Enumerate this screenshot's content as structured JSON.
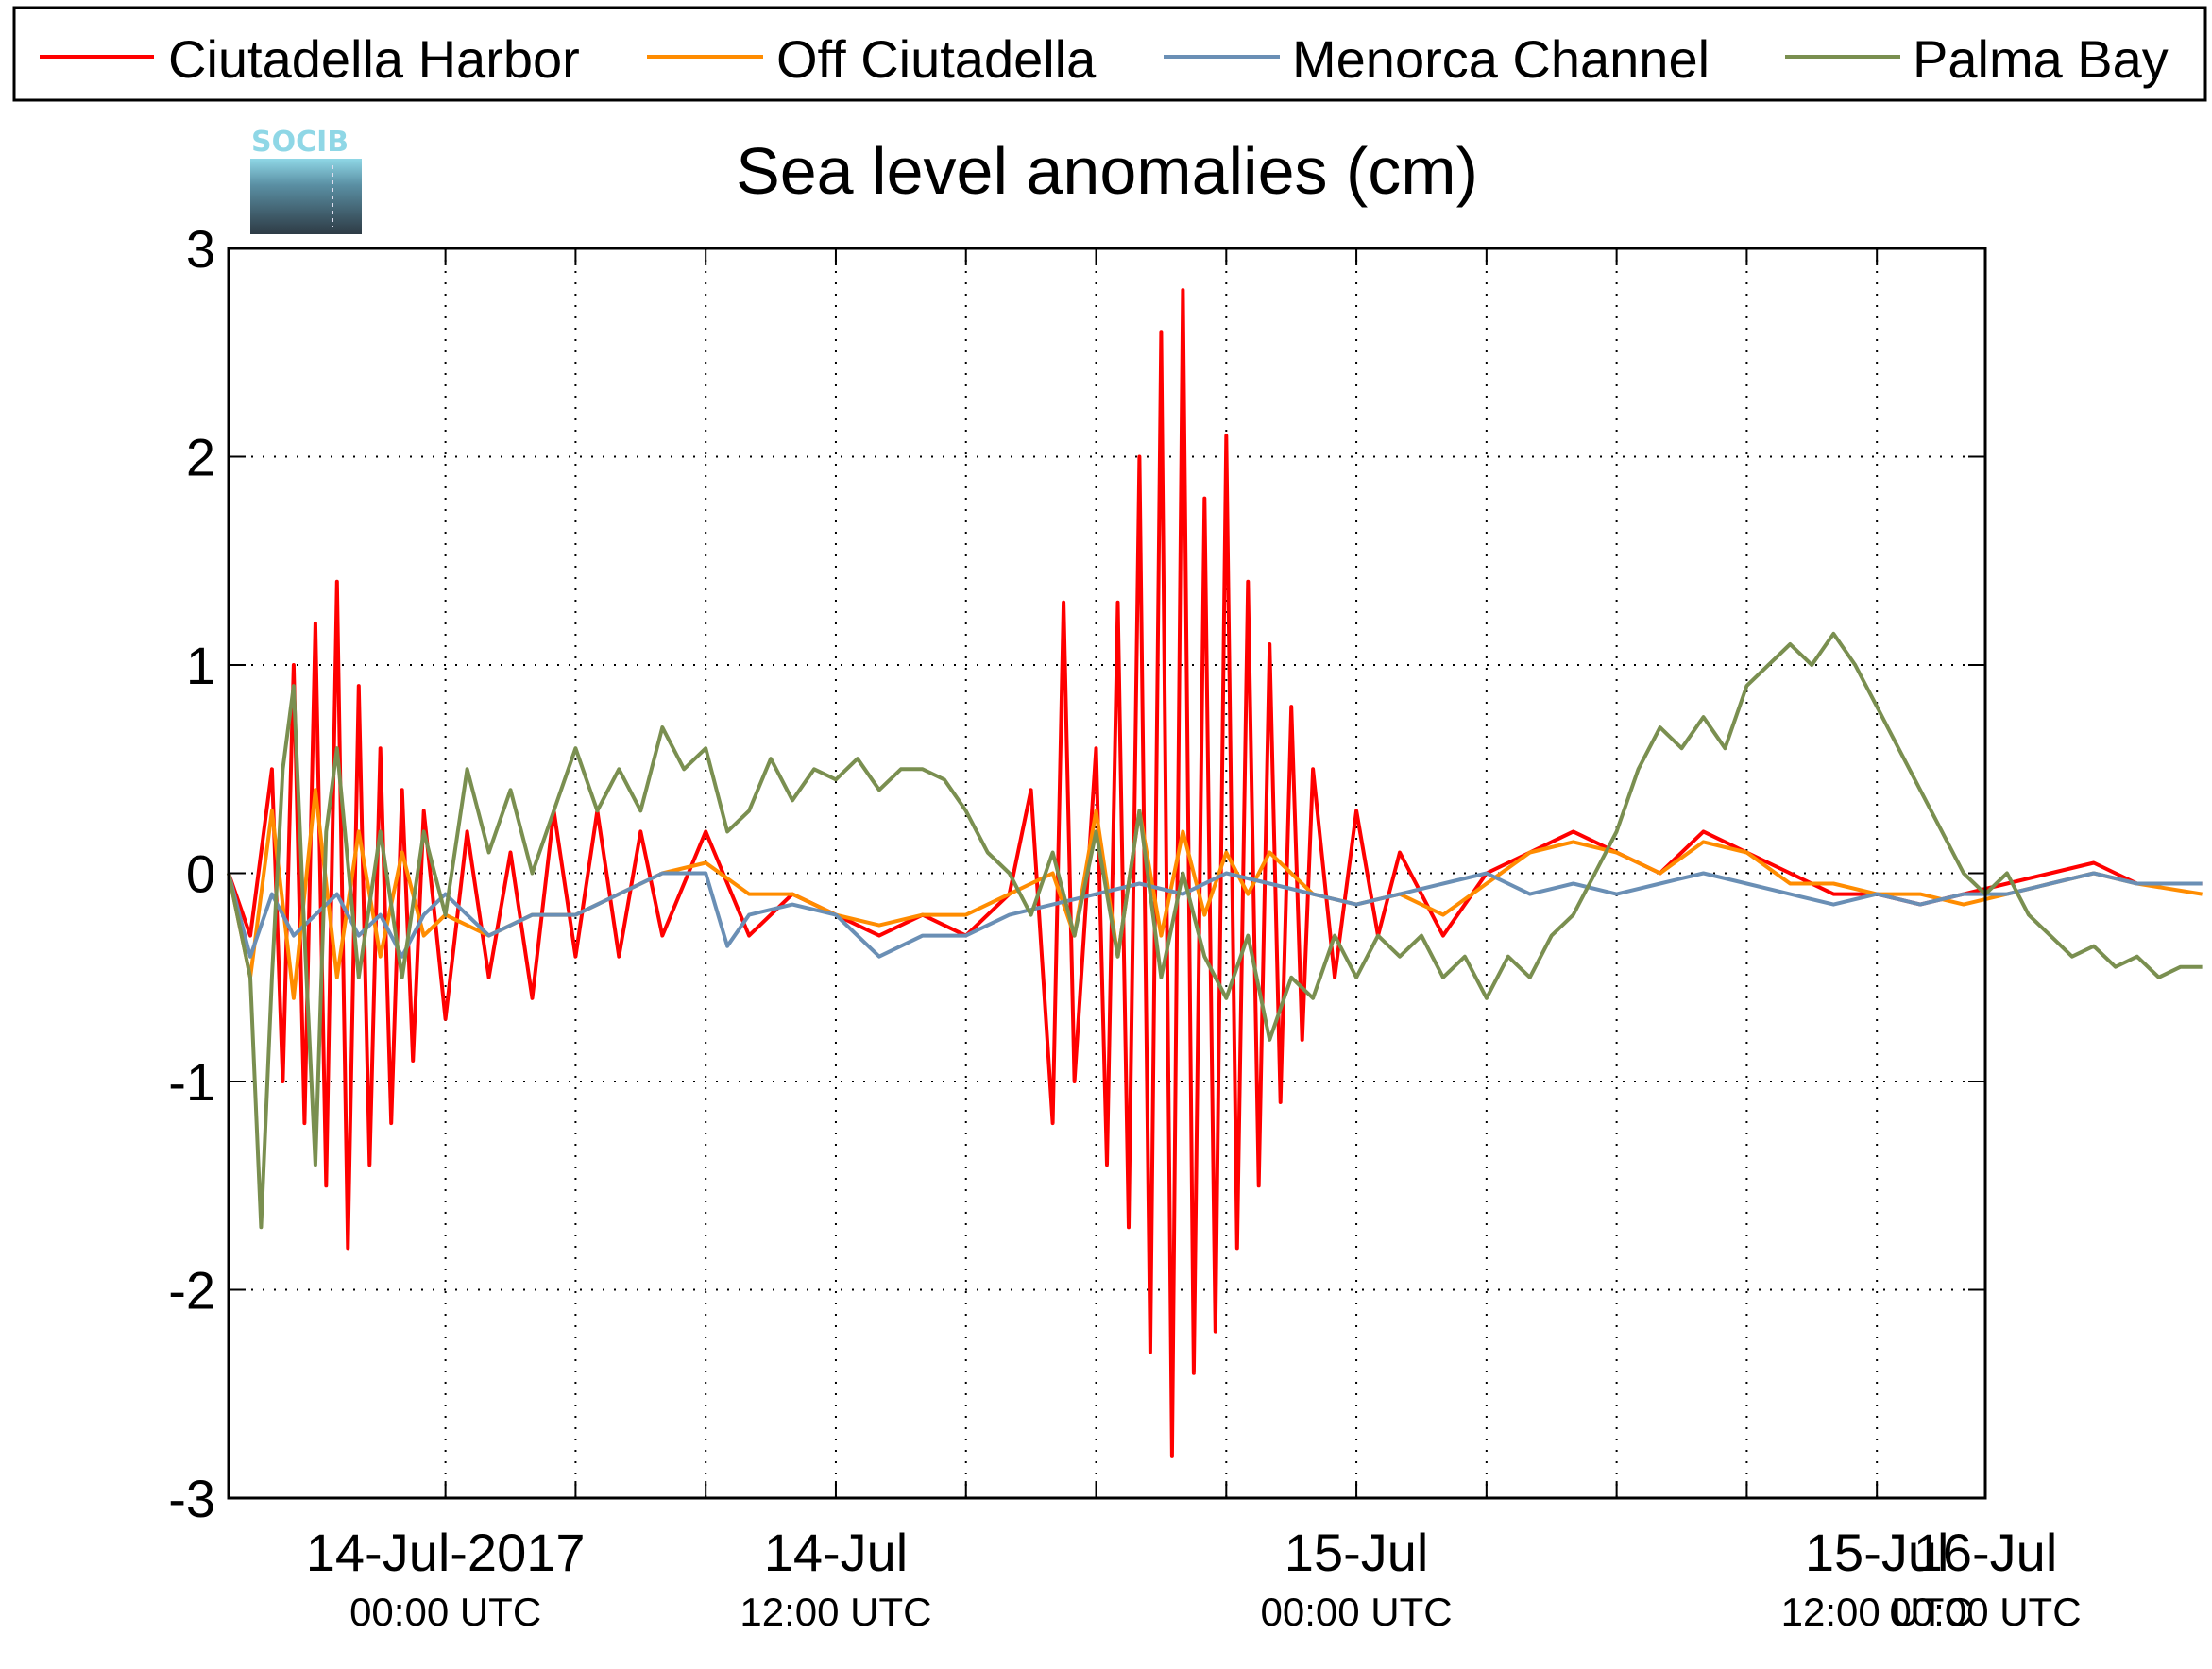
{
  "chart_data": {
    "type": "line",
    "title": "Sea level anomalies (cm)",
    "xlabel": "",
    "ylabel": "",
    "logo_text": "SOCIB",
    "legend_position": "top (outside, horizontal)",
    "grid": true,
    "xlim_hours": [
      -10,
      71
    ],
    "ylim": [
      -3,
      3
    ],
    "y_ticks": [
      "3",
      "2",
      "1",
      "0",
      "-1",
      "-2",
      "-3"
    ],
    "x_ticks": [
      {
        "date": "14-Jul-2017",
        "time": "00:00 UTC"
      },
      {
        "date": "14-Jul",
        "time": "12:00 UTC"
      },
      {
        "date": "15-Jul",
        "time": "00:00 UTC"
      },
      {
        "date": "15-Jul",
        "time": "12:00 UTC"
      },
      {
        "date": "16-Jul",
        "time": "00:00 UTC"
      }
    ],
    "series": [
      {
        "name": "Ciutadella Harbor",
        "color": "#ff0000",
        "points": [
          [
            -10,
            0
          ],
          [
            -9,
            -0.3
          ],
          [
            -8,
            0.5
          ],
          [
            -7.5,
            -1.0
          ],
          [
            -7,
            1.0
          ],
          [
            -6.5,
            -1.2
          ],
          [
            -6,
            1.2
          ],
          [
            -5.5,
            -1.5
          ],
          [
            -5,
            1.4
          ],
          [
            -4.5,
            -1.8
          ],
          [
            -4,
            0.9
          ],
          [
            -3.5,
            -1.4
          ],
          [
            -3,
            0.6
          ],
          [
            -2.5,
            -1.2
          ],
          [
            -2,
            0.4
          ],
          [
            -1.5,
            -0.9
          ],
          [
            -1,
            0.3
          ],
          [
            0,
            -0.7
          ],
          [
            1,
            0.2
          ],
          [
            2,
            -0.5
          ],
          [
            3,
            0.1
          ],
          [
            4,
            -0.6
          ],
          [
            5,
            0.3
          ],
          [
            6,
            -0.4
          ],
          [
            7,
            0.3
          ],
          [
            8,
            -0.4
          ],
          [
            9,
            0.2
          ],
          [
            10,
            -0.3
          ],
          [
            12,
            0.2
          ],
          [
            14,
            -0.3
          ],
          [
            16,
            -0.1
          ],
          [
            18,
            -0.2
          ],
          [
            20,
            -0.3
          ],
          [
            22,
            -0.2
          ],
          [
            24,
            -0.3
          ],
          [
            26,
            -0.1
          ],
          [
            27,
            0.4
          ],
          [
            28,
            -1.2
          ],
          [
            28.5,
            1.3
          ],
          [
            29,
            -1.0
          ],
          [
            30,
            0.6
          ],
          [
            30.5,
            -1.4
          ],
          [
            31,
            1.3
          ],
          [
            31.5,
            -1.7
          ],
          [
            32,
            2.0
          ],
          [
            32.5,
            -2.3
          ],
          [
            33,
            2.6
          ],
          [
            33.5,
            -2.8
          ],
          [
            34,
            2.8
          ],
          [
            34.5,
            -2.4
          ],
          [
            35,
            1.8
          ],
          [
            35.5,
            -2.2
          ],
          [
            36,
            2.1
          ],
          [
            36.5,
            -1.8
          ],
          [
            37,
            1.4
          ],
          [
            37.5,
            -1.5
          ],
          [
            38,
            1.1
          ],
          [
            38.5,
            -1.1
          ],
          [
            39,
            0.8
          ],
          [
            39.5,
            -0.8
          ],
          [
            40,
            0.5
          ],
          [
            41,
            -0.5
          ],
          [
            42,
            0.3
          ],
          [
            43,
            -0.3
          ],
          [
            44,
            0.1
          ],
          [
            46,
            -0.3
          ],
          [
            48,
            0.0
          ],
          [
            50,
            0.1
          ],
          [
            52,
            0.2
          ],
          [
            54,
            0.1
          ],
          [
            56,
            0.0
          ],
          [
            58,
            0.2
          ],
          [
            60,
            0.1
          ],
          [
            62,
            0.0
          ],
          [
            64,
            -0.1
          ],
          [
            66,
            -0.1
          ],
          [
            68,
            -0.15
          ],
          [
            70,
            -0.1
          ],
          [
            72,
            -0.05
          ],
          [
            74,
            0.0
          ],
          [
            76,
            0.05
          ],
          [
            78,
            -0.05
          ],
          [
            81,
            -0.05
          ]
        ]
      },
      {
        "name": "Off Ciutadella",
        "color": "#ff8c00",
        "points": [
          [
            -10,
            0
          ],
          [
            -9,
            -0.5
          ],
          [
            -8,
            0.3
          ],
          [
            -7,
            -0.6
          ],
          [
            -6,
            0.4
          ],
          [
            -5,
            -0.5
          ],
          [
            -4,
            0.2
          ],
          [
            -3,
            -0.4
          ],
          [
            -2,
            0.1
          ],
          [
            -1,
            -0.3
          ],
          [
            0,
            -0.2
          ],
          [
            2,
            -0.3
          ],
          [
            4,
            -0.2
          ],
          [
            6,
            -0.2
          ],
          [
            8,
            -0.1
          ],
          [
            10,
            0.0
          ],
          [
            12,
            0.05
          ],
          [
            14,
            -0.1
          ],
          [
            16,
            -0.1
          ],
          [
            18,
            -0.2
          ],
          [
            20,
            -0.25
          ],
          [
            22,
            -0.2
          ],
          [
            24,
            -0.2
          ],
          [
            26,
            -0.1
          ],
          [
            28,
            0.0
          ],
          [
            29,
            -0.3
          ],
          [
            30,
            0.3
          ],
          [
            31,
            -0.4
          ],
          [
            32,
            0.3
          ],
          [
            33,
            -0.3
          ],
          [
            34,
            0.2
          ],
          [
            35,
            -0.2
          ],
          [
            36,
            0.1
          ],
          [
            37,
            -0.1
          ],
          [
            38,
            0.1
          ],
          [
            40,
            -0.1
          ],
          [
            42,
            -0.15
          ],
          [
            44,
            -0.1
          ],
          [
            46,
            -0.2
          ],
          [
            48,
            -0.05
          ],
          [
            50,
            0.1
          ],
          [
            52,
            0.15
          ],
          [
            54,
            0.1
          ],
          [
            56,
            0.0
          ],
          [
            58,
            0.15
          ],
          [
            60,
            0.1
          ],
          [
            62,
            -0.05
          ],
          [
            64,
            -0.05
          ],
          [
            66,
            -0.1
          ],
          [
            68,
            -0.1
          ],
          [
            70,
            -0.15
          ],
          [
            72,
            -0.1
          ],
          [
            74,
            -0.05
          ],
          [
            76,
            0.0
          ],
          [
            78,
            -0.05
          ],
          [
            81,
            -0.1
          ]
        ]
      },
      {
        "name": "Menorca Channel",
        "color": "#6a8fb5",
        "points": [
          [
            -10,
            0
          ],
          [
            -9,
            -0.4
          ],
          [
            -8,
            -0.1
          ],
          [
            -7,
            -0.3
          ],
          [
            -6,
            -0.2
          ],
          [
            -5,
            -0.1
          ],
          [
            -4,
            -0.3
          ],
          [
            -3,
            -0.2
          ],
          [
            -2,
            -0.4
          ],
          [
            -1,
            -0.2
          ],
          [
            0,
            -0.1
          ],
          [
            2,
            -0.3
          ],
          [
            4,
            -0.2
          ],
          [
            6,
            -0.2
          ],
          [
            8,
            -0.1
          ],
          [
            10,
            0.0
          ],
          [
            12,
            0.0
          ],
          [
            13,
            -0.35
          ],
          [
            14,
            -0.2
          ],
          [
            16,
            -0.15
          ],
          [
            18,
            -0.2
          ],
          [
            20,
            -0.4
          ],
          [
            22,
            -0.3
          ],
          [
            24,
            -0.3
          ],
          [
            26,
            -0.2
          ],
          [
            28,
            -0.15
          ],
          [
            30,
            -0.1
          ],
          [
            32,
            -0.05
          ],
          [
            34,
            -0.1
          ],
          [
            36,
            0.0
          ],
          [
            38,
            -0.05
          ],
          [
            40,
            -0.1
          ],
          [
            42,
            -0.15
          ],
          [
            44,
            -0.1
          ],
          [
            46,
            -0.05
          ],
          [
            48,
            0.0
          ],
          [
            50,
            -0.1
          ],
          [
            52,
            -0.05
          ],
          [
            54,
            -0.1
          ],
          [
            56,
            -0.05
          ],
          [
            58,
            0.0
          ],
          [
            60,
            -0.05
          ],
          [
            62,
            -0.1
          ],
          [
            64,
            -0.15
          ],
          [
            66,
            -0.1
          ],
          [
            68,
            -0.15
          ],
          [
            70,
            -0.1
          ],
          [
            72,
            -0.1
          ],
          [
            74,
            -0.05
          ],
          [
            76,
            0.0
          ],
          [
            78,
            -0.05
          ],
          [
            81,
            -0.05
          ]
        ]
      },
      {
        "name": "Palma Bay",
        "color": "#7a8f50",
        "points": [
          [
            -10,
            0
          ],
          [
            -9,
            -0.5
          ],
          [
            -8.5,
            -1.7
          ],
          [
            -8,
            -0.5
          ],
          [
            -7.5,
            0.5
          ],
          [
            -7,
            0.9
          ],
          [
            -6.5,
            -0.3
          ],
          [
            -6,
            -1.4
          ],
          [
            -5.5,
            0.2
          ],
          [
            -5,
            0.6
          ],
          [
            -4,
            -0.5
          ],
          [
            -3,
            0.2
          ],
          [
            -2,
            -0.5
          ],
          [
            -1,
            0.2
          ],
          [
            0,
            -0.2
          ],
          [
            1,
            0.5
          ],
          [
            2,
            0.1
          ],
          [
            3,
            0.4
          ],
          [
            4,
            0.0
          ],
          [
            5,
            0.3
          ],
          [
            6,
            0.6
          ],
          [
            7,
            0.3
          ],
          [
            8,
            0.5
          ],
          [
            9,
            0.3
          ],
          [
            10,
            0.7
          ],
          [
            11,
            0.5
          ],
          [
            12,
            0.6
          ],
          [
            13,
            0.2
          ],
          [
            14,
            0.3
          ],
          [
            15,
            0.55
          ],
          [
            16,
            0.35
          ],
          [
            17,
            0.5
          ],
          [
            18,
            0.45
          ],
          [
            19,
            0.55
          ],
          [
            20,
            0.4
          ],
          [
            21,
            0.5
          ],
          [
            22,
            0.5
          ],
          [
            23,
            0.45
          ],
          [
            24,
            0.3
          ],
          [
            25,
            0.1
          ],
          [
            26,
            0.0
          ],
          [
            27,
            -0.2
          ],
          [
            28,
            0.1
          ],
          [
            29,
            -0.3
          ],
          [
            30,
            0.2
          ],
          [
            31,
            -0.4
          ],
          [
            32,
            0.3
          ],
          [
            33,
            -0.5
          ],
          [
            34,
            0.0
          ],
          [
            35,
            -0.4
          ],
          [
            36,
            -0.6
          ],
          [
            37,
            -0.3
          ],
          [
            38,
            -0.8
          ],
          [
            39,
            -0.5
          ],
          [
            40,
            -0.6
          ],
          [
            41,
            -0.3
          ],
          [
            42,
            -0.5
          ],
          [
            43,
            -0.3
          ],
          [
            44,
            -0.4
          ],
          [
            45,
            -0.3
          ],
          [
            46,
            -0.5
          ],
          [
            47,
            -0.4
          ],
          [
            48,
            -0.6
          ],
          [
            49,
            -0.4
          ],
          [
            50,
            -0.5
          ],
          [
            51,
            -0.3
          ],
          [
            52,
            -0.2
          ],
          [
            53,
            0.0
          ],
          [
            54,
            0.2
          ],
          [
            55,
            0.5
          ],
          [
            56,
            0.7
          ],
          [
            57,
            0.6
          ],
          [
            58,
            0.75
          ],
          [
            59,
            0.6
          ],
          [
            60,
            0.9
          ],
          [
            61,
            1.0
          ],
          [
            62,
            1.1
          ],
          [
            63,
            1.0
          ],
          [
            64,
            1.15
          ],
          [
            65,
            1.0
          ],
          [
            66,
            0.8
          ],
          [
            67,
            0.6
          ],
          [
            68,
            0.4
          ],
          [
            69,
            0.2
          ],
          [
            70,
            0.0
          ],
          [
            71,
            -0.1
          ],
          [
            72,
            0.0
          ],
          [
            73,
            -0.2
          ],
          [
            74,
            -0.3
          ],
          [
            75,
            -0.4
          ],
          [
            76,
            -0.35
          ],
          [
            77,
            -0.45
          ],
          [
            78,
            -0.4
          ],
          [
            79,
            -0.5
          ],
          [
            80,
            -0.45
          ],
          [
            81,
            -0.45
          ]
        ]
      }
    ]
  }
}
